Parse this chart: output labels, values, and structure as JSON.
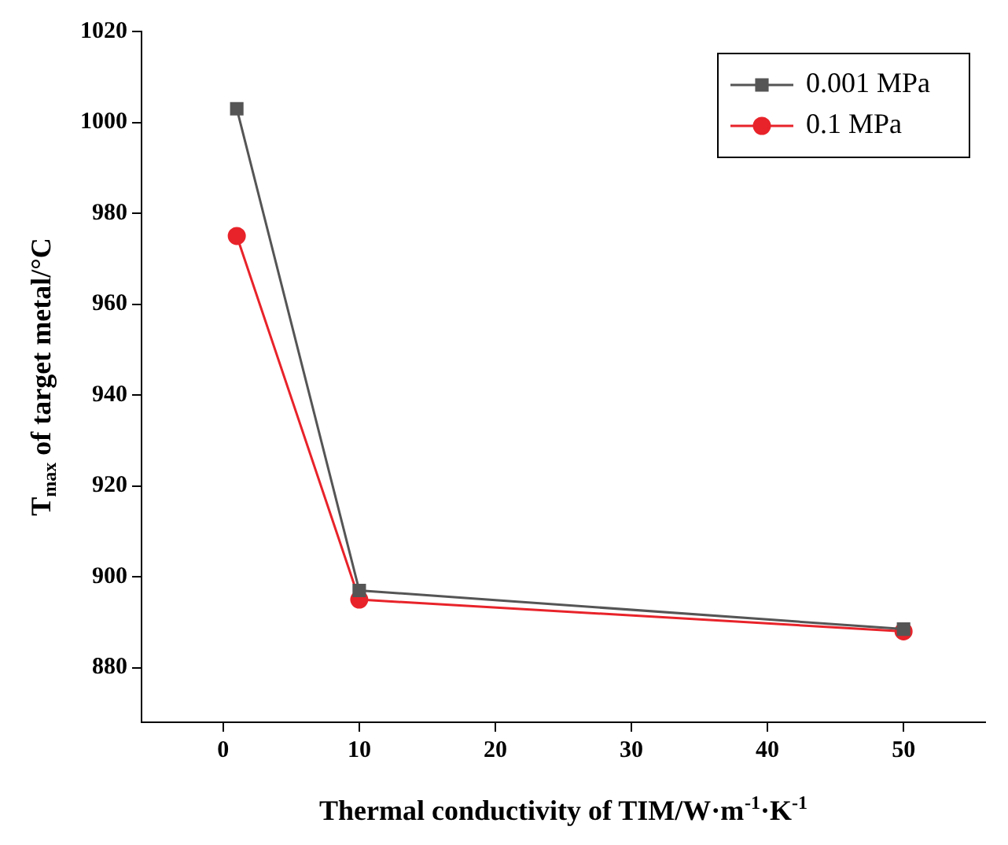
{
  "chart_data": {
    "type": "line",
    "xlabel": "Thermal conductivity of TIM/W·m$^{-1}$·K$^{-1}$",
    "ylabel": "T$_{max}$ of target metal/°C",
    "x": [
      1,
      10,
      50
    ],
    "series": [
      {
        "name": "0.001 MPa",
        "color": "#555555",
        "marker": "square",
        "values": [
          1003,
          897,
          888.5
        ]
      },
      {
        "name": "0.1 MPa",
        "color": "#e8232a",
        "marker": "circle",
        "values": [
          975,
          895,
          888
        ]
      }
    ],
    "xlim": [
      -6,
      56
    ],
    "xticks": [
      0,
      10,
      20,
      30,
      40,
      50
    ],
    "ylim": [
      868,
      1020
    ],
    "yticks": [
      880,
      900,
      920,
      940,
      960,
      980,
      1000,
      1020
    ],
    "grid": false,
    "legend": "top right",
    "line_style": "solid"
  }
}
